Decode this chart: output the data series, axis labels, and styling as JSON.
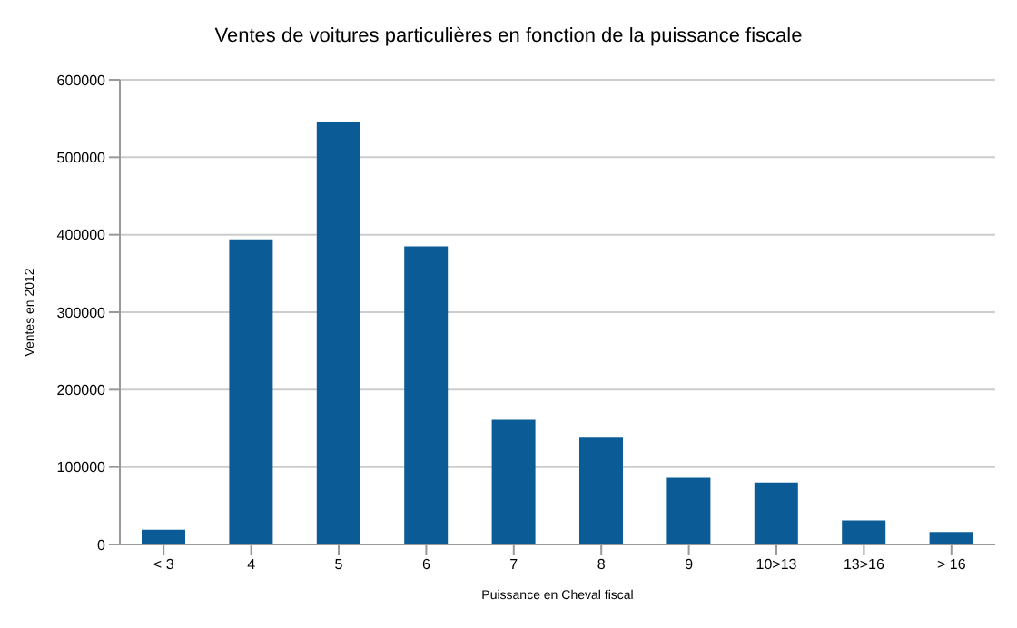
{
  "chart_data": {
    "type": "bar",
    "title": "Ventes de voitures particulières en fonction de la puissance fiscale",
    "xlabel": "Puissance en Cheval fiscal",
    "ylabel": "Ventes en 2012",
    "categories": [
      "< 3",
      "4",
      "5",
      "6",
      "7",
      "8",
      "9",
      "10>13",
      "13>16",
      "> 16"
    ],
    "values": [
      19000,
      394000,
      546000,
      385000,
      161000,
      138000,
      86000,
      80000,
      31000,
      16000
    ],
    "color": "#0b5c96",
    "ylim": [
      0,
      600000
    ],
    "yticks": [
      0,
      100000,
      200000,
      300000,
      400000,
      500000,
      600000
    ],
    "grid": "y"
  }
}
